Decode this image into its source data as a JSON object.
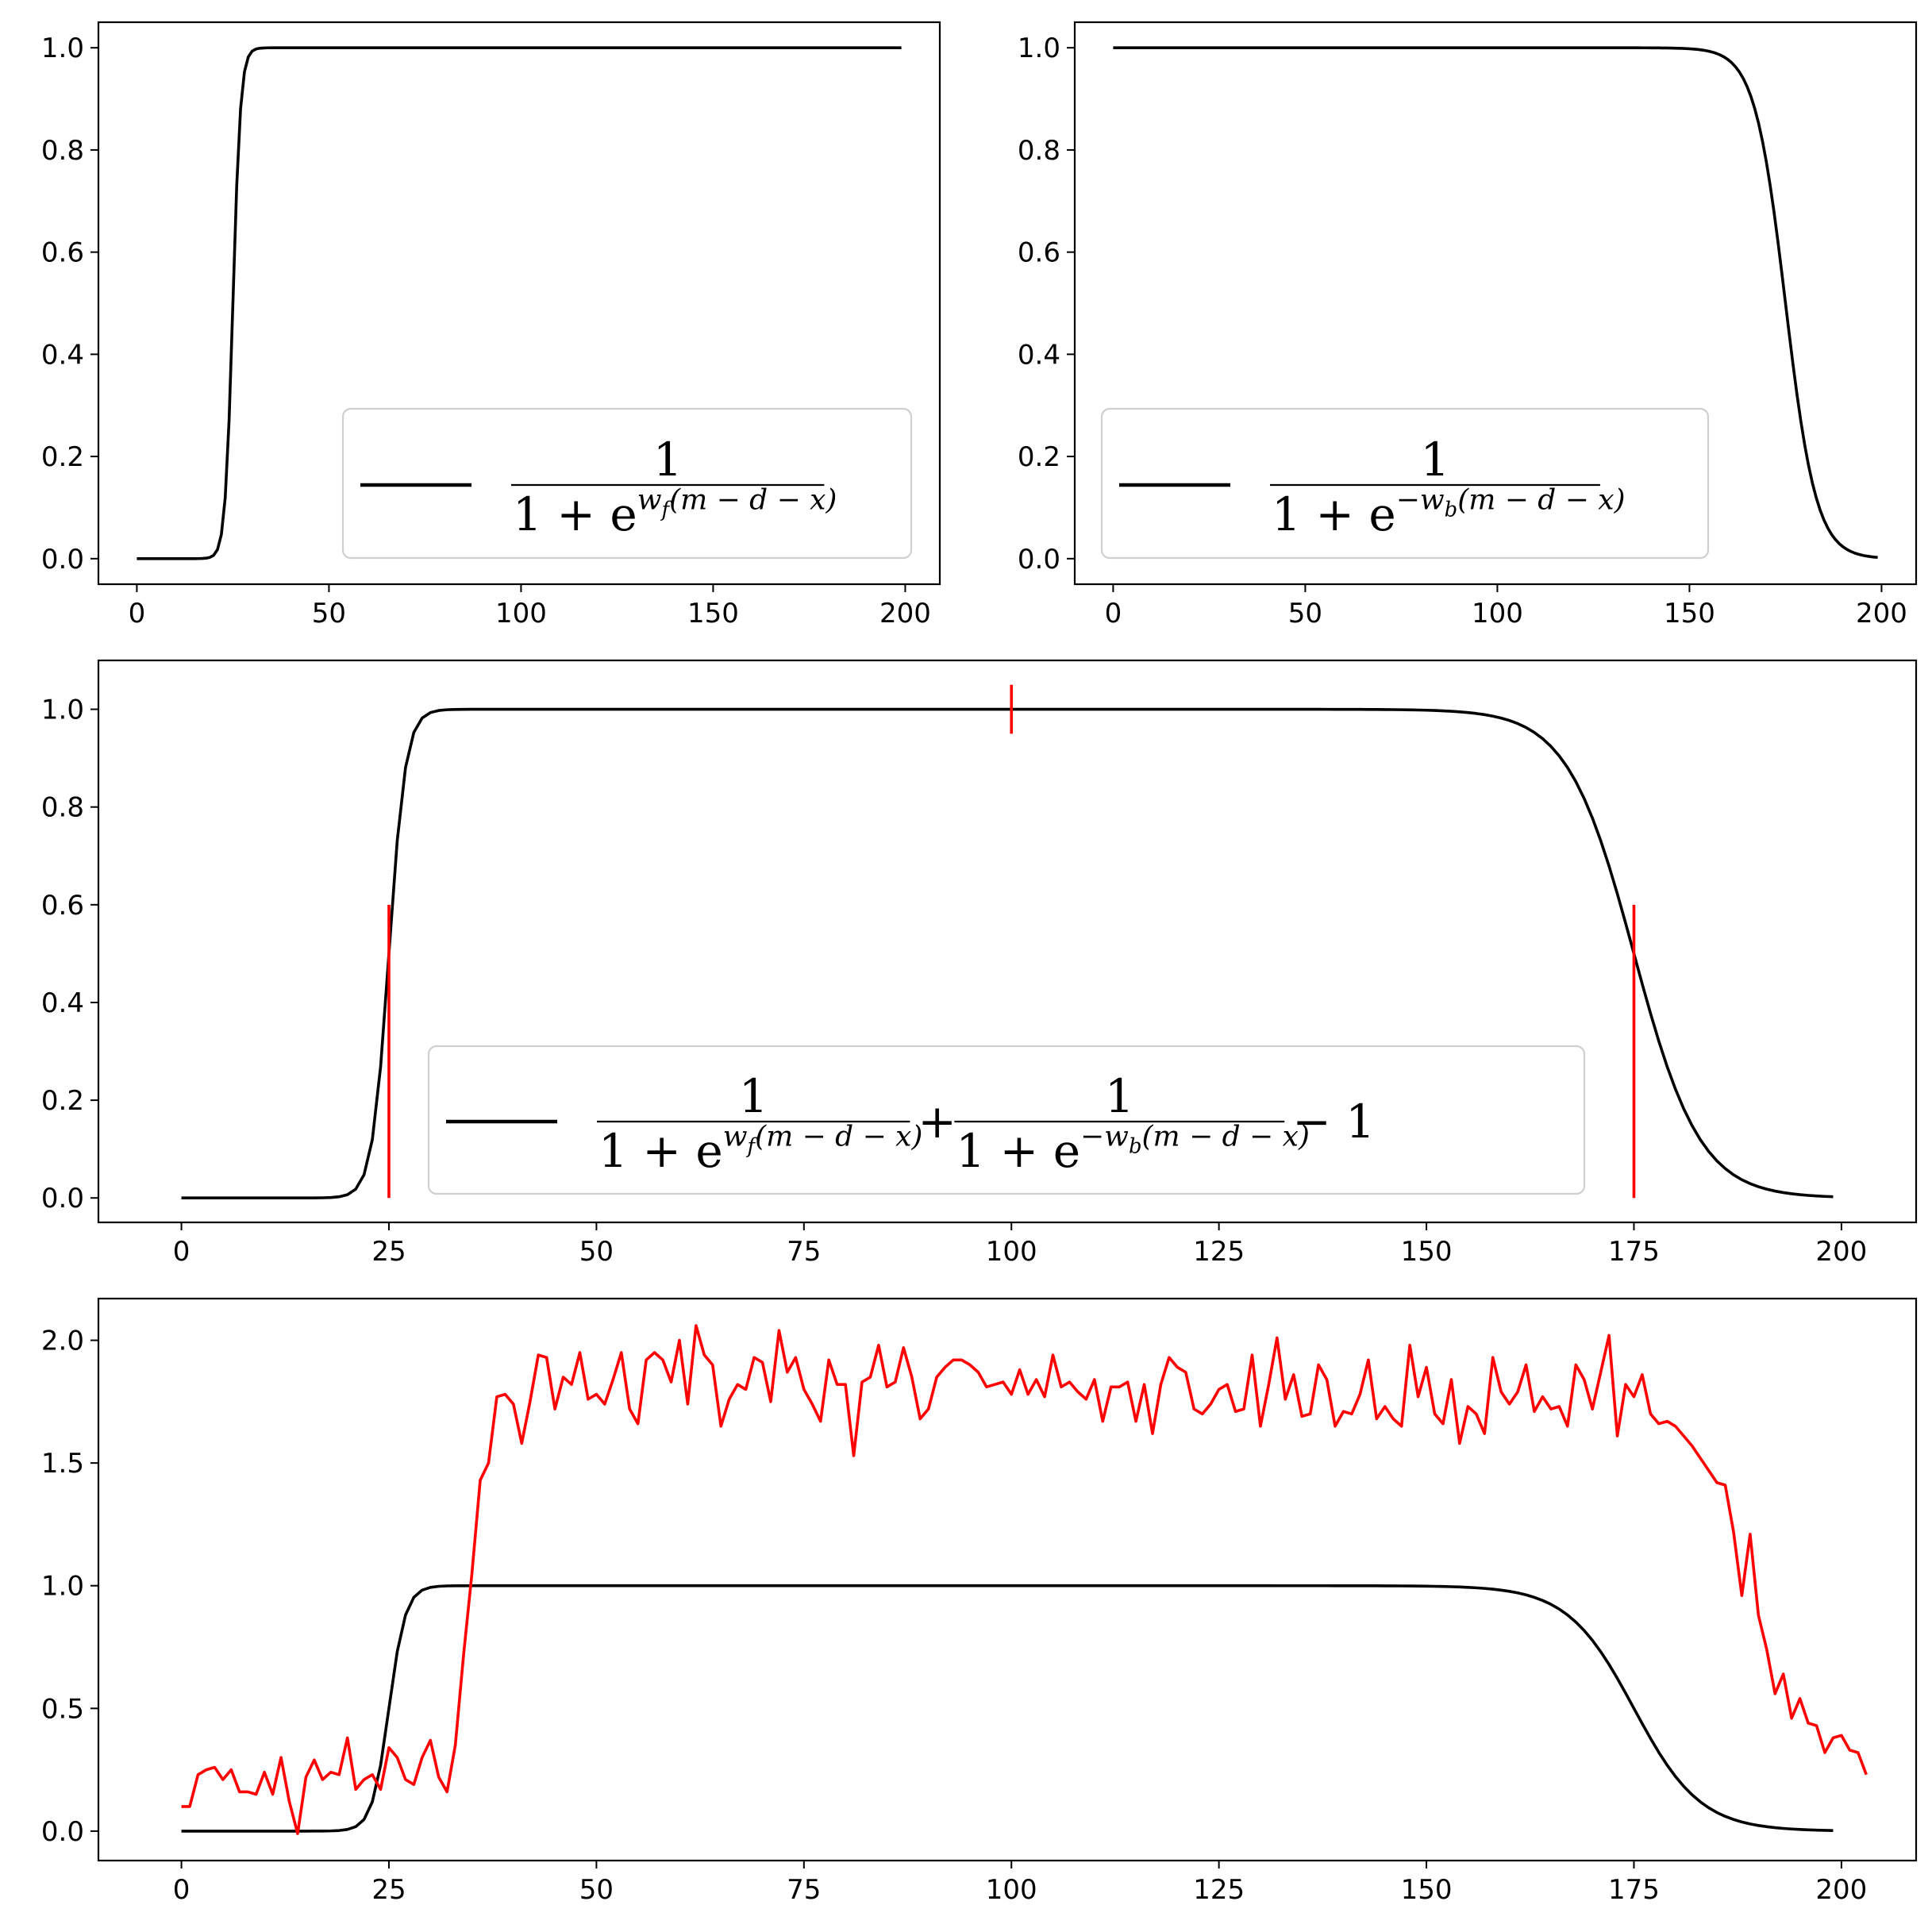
{
  "chart_data": [
    {
      "id": "top-left",
      "type": "line",
      "xlim": [
        -10,
        209
      ],
      "ylim": [
        -0.05,
        1.05
      ],
      "xticks": [
        0,
        50,
        100,
        150,
        200
      ],
      "xtick_labels": [
        "0",
        "50",
        "100",
        "150",
        "200"
      ],
      "yticks": [
        0.0,
        0.2,
        0.4,
        0.6,
        0.8,
        1.0
      ],
      "ytick_labels": [
        "0.0",
        "0.2",
        "0.4",
        "0.6",
        "0.8",
        "1.0"
      ],
      "legend_position": "lower-right",
      "series": [
        {
          "color": "#000000",
          "kind": "sigmoid",
          "direction": "rising",
          "midpoint": 25,
          "rate": 1.0,
          "x_range": [
            0,
            199
          ],
          "legend": {
            "numerator": "1",
            "base": "1 + e",
            "exp_sign": "",
            "weight": "w",
            "weight_sub": "f",
            "exp_tail": "(m − d − x)"
          }
        }
      ]
    },
    {
      "id": "top-right",
      "type": "line",
      "xlim": [
        -10,
        209
      ],
      "ylim": [
        -0.05,
        1.05
      ],
      "xticks": [
        0,
        50,
        100,
        150,
        200
      ],
      "xtick_labels": [
        "0",
        "50",
        "100",
        "150",
        "200"
      ],
      "yticks": [
        0.0,
        0.2,
        0.4,
        0.6,
        0.8,
        1.0
      ],
      "ytick_labels": [
        "0.0",
        "0.2",
        "0.4",
        "0.6",
        "0.8",
        "1.0"
      ],
      "legend_position": "lower-left",
      "series": [
        {
          "color": "#000000",
          "kind": "sigmoid",
          "direction": "falling",
          "midpoint": 175,
          "rate": 0.25,
          "x_range": [
            0,
            199
          ],
          "legend": {
            "numerator": "1",
            "base": "1 + e",
            "exp_sign": "−",
            "weight": "w",
            "weight_sub": "b",
            "exp_tail": "(m − d − x)"
          }
        }
      ]
    },
    {
      "id": "middle",
      "type": "line",
      "xlim": [
        -10,
        209
      ],
      "ylim": [
        -0.05,
        1.1
      ],
      "xticks": [
        0,
        25,
        50,
        75,
        100,
        125,
        150,
        175,
        200
      ],
      "xtick_labels": [
        "0",
        "25",
        "50",
        "75",
        "100",
        "125",
        "150",
        "175",
        "200"
      ],
      "yticks": [
        0.0,
        0.2,
        0.4,
        0.6,
        0.8,
        1.0
      ],
      "ytick_labels": [
        "0.0",
        "0.2",
        "0.4",
        "0.6",
        "0.8",
        "1.0"
      ],
      "legend_position": "lower-center",
      "series": [
        {
          "color": "#000000",
          "kind": "double-sigmoid",
          "rise_midpoint": 25,
          "rise_rate": 1.0,
          "fall_midpoint": 175,
          "fall_rate": 0.25,
          "x_range": [
            0,
            199
          ],
          "legend": {
            "term1": {
              "numerator": "1",
              "base": "1 + e",
              "exp_sign": "",
              "weight": "w",
              "weight_sub": "f",
              "exp_tail": "(m − d − x)"
            },
            "plus": "+",
            "term2": {
              "numerator": "1",
              "base": "1 + e",
              "exp_sign": "−",
              "weight": "w",
              "weight_sub": "b",
              "exp_tail": "(m − d − x)"
            },
            "tail": "− 1"
          }
        }
      ],
      "markers": [
        {
          "color": "#ff0000",
          "x": 25,
          "y_range": [
            0.0,
            0.6
          ]
        },
        {
          "color": "#ff0000",
          "x": 100,
          "y_range": [
            0.95,
            1.05
          ]
        },
        {
          "color": "#ff0000",
          "x": 175,
          "y_range": [
            0.0,
            0.6
          ]
        }
      ]
    },
    {
      "id": "bottom",
      "type": "line",
      "xlim": [
        -10,
        209
      ],
      "ylim": [
        -0.12,
        2.17
      ],
      "xticks": [
        0,
        25,
        50,
        75,
        100,
        125,
        150,
        175,
        200
      ],
      "xtick_labels": [
        "0",
        "25",
        "50",
        "75",
        "100",
        "125",
        "150",
        "175",
        "200"
      ],
      "yticks": [
        0.0,
        0.5,
        1.0,
        1.5,
        2.0
      ],
      "ytick_labels": [
        "0.0",
        "0.5",
        "1.0",
        "1.5",
        "2.0"
      ],
      "series": [
        {
          "color": "#000000",
          "kind": "double-sigmoid",
          "rise_midpoint": 25,
          "rise_rate": 1.0,
          "fall_midpoint": 175,
          "fall_rate": 0.25,
          "x_range": [
            0,
            199
          ]
        },
        {
          "color": "#ff0000",
          "kind": "points",
          "x_start": 0,
          "x_step": 1,
          "values": [
            0.1,
            0.1,
            0.23,
            0.25,
            0.26,
            0.21,
            0.25,
            0.16,
            0.16,
            0.15,
            0.24,
            0.15,
            0.3,
            0.12,
            -0.01,
            0.22,
            0.29,
            0.21,
            0.24,
            0.23,
            0.38,
            0.17,
            0.21,
            0.23,
            0.17,
            0.34,
            0.3,
            0.21,
            0.19,
            0.3,
            0.37,
            0.22,
            0.16,
            0.35,
            0.72,
            1.05,
            1.43,
            1.5,
            1.77,
            1.78,
            1.74,
            1.58,
            1.75,
            1.94,
            1.93,
            1.72,
            1.85,
            1.82,
            1.95,
            1.76,
            1.78,
            1.74,
            1.84,
            1.95,
            1.72,
            1.66,
            1.92,
            1.95,
            1.92,
            1.83,
            2.0,
            1.74,
            2.06,
            1.94,
            1.9,
            1.65,
            1.76,
            1.82,
            1.8,
            1.93,
            1.91,
            1.75,
            2.04,
            1.87,
            1.93,
            1.8,
            1.74,
            1.67,
            1.92,
            1.82,
            1.82,
            1.53,
            1.83,
            1.85,
            1.98,
            1.81,
            1.83,
            1.97,
            1.85,
            1.68,
            1.72,
            1.85,
            1.89,
            1.92,
            1.92,
            1.9,
            1.87,
            1.81,
            1.82,
            1.83,
            1.78,
            1.88,
            1.78,
            1.84,
            1.77,
            1.94,
            1.81,
            1.83,
            1.79,
            1.76,
            1.84,
            1.67,
            1.81,
            1.81,
            1.83,
            1.67,
            1.82,
            1.62,
            1.82,
            1.93,
            1.89,
            1.87,
            1.72,
            1.7,
            1.74,
            1.8,
            1.82,
            1.71,
            1.72,
            1.94,
            1.65,
            1.82,
            2.01,
            1.76,
            1.86,
            1.69,
            1.7,
            1.9,
            1.84,
            1.65,
            1.71,
            1.7,
            1.78,
            1.92,
            1.68,
            1.73,
            1.68,
            1.65,
            1.98,
            1.77,
            1.89,
            1.7,
            1.66,
            1.84,
            1.58,
            1.73,
            1.7,
            1.62,
            1.93,
            1.79,
            1.74,
            1.79,
            1.9,
            1.71,
            1.77,
            1.72,
            1.73,
            1.65,
            1.9,
            1.84,
            1.72,
            1.87,
            2.02,
            1.61,
            1.82,
            1.77,
            1.86,
            1.7,
            1.66,
            1.67,
            1.65,
            1.61,
            1.57,
            1.52,
            1.47,
            1.42,
            1.41,
            1.22,
            0.96,
            1.21,
            0.88,
            0.74,
            0.56,
            0.64,
            0.46,
            0.54,
            0.44,
            0.43,
            0.32,
            0.38,
            0.39,
            0.33,
            0.32,
            0.23
          ]
        }
      ]
    }
  ]
}
